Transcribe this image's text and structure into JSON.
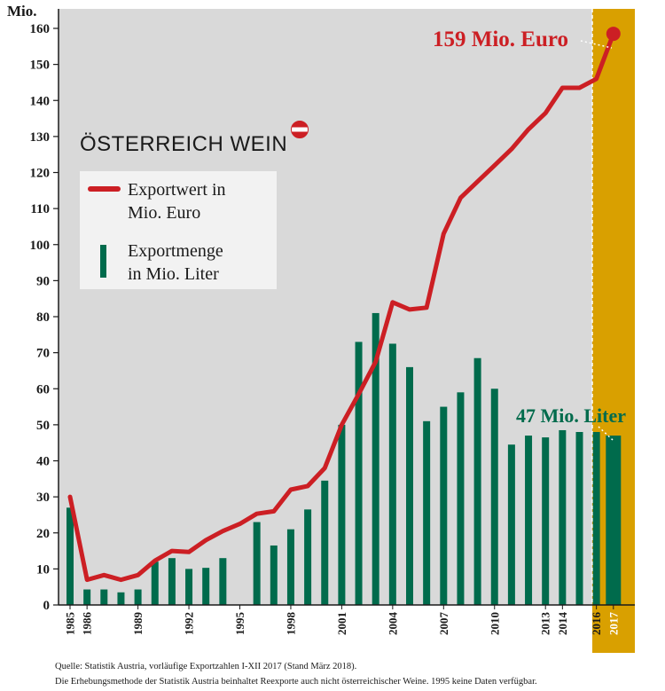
{
  "chart_data": {
    "type": "bar",
    "unit_label": "Mio.",
    "ylim": [
      0,
      160
    ],
    "yticks": [
      0,
      10,
      20,
      30,
      40,
      50,
      60,
      70,
      80,
      90,
      100,
      110,
      120,
      130,
      140,
      150,
      160
    ],
    "years": [
      1985,
      1986,
      1987,
      1988,
      1989,
      1990,
      1991,
      1992,
      1993,
      1994,
      1995,
      1996,
      1997,
      1998,
      1999,
      2000,
      2001,
      2002,
      2003,
      2004,
      2005,
      2006,
      2007,
      2008,
      2009,
      2010,
      2011,
      2012,
      2013,
      2014,
      2015,
      2016,
      2017
    ],
    "x_tick_labels": [
      "1985",
      "1986",
      "1989",
      "1992",
      "1995",
      "1998",
      "2001",
      "2004",
      "2007",
      "2010",
      "2013",
      "2014",
      "2016",
      "2017"
    ],
    "highlight_year": 2017,
    "series": [
      {
        "name": "Exportmenge in Mio. Liter",
        "type": "bar",
        "color": "#006b4c",
        "values": [
          27,
          4.3,
          4.3,
          3.5,
          4.3,
          12,
          13,
          10,
          10.3,
          13,
          null,
          23,
          16.5,
          21,
          26.5,
          34.5,
          50,
          73,
          81,
          72.5,
          66,
          51,
          55,
          59,
          68.5,
          60,
          44.5,
          47,
          46.5,
          48.5,
          48,
          48,
          47
        ]
      },
      {
        "name": "Exportwert in Mio. Euro",
        "type": "line",
        "color": "#cc1f24",
        "values": [
          30,
          7,
          8.3,
          7,
          8.3,
          12.3,
          15,
          14.7,
          18,
          20.5,
          22.5,
          25.3,
          26,
          32,
          33,
          38,
          50,
          58.5,
          67.5,
          84,
          82,
          82.5,
          103,
          113,
          117.5,
          122,
          126.5,
          132,
          136.5,
          143.5,
          143.5,
          146,
          158.5
        ]
      }
    ],
    "legend": {
      "line_label_1": "Exportwert in",
      "line_label_2": "Mio. Euro",
      "bar_label_1": "Exportmenge",
      "bar_label_2": "in Mio. Liter",
      "placement": "top-left"
    },
    "annotations": {
      "euro": "159 Mio. Euro",
      "liter": "47 Mio. Liter"
    },
    "colors": {
      "plot_background": "#d9d9d9",
      "highlight_band": "#d9a000",
      "bar": "#006b4c",
      "line": "#cc1f24"
    }
  },
  "logo": {
    "text": "ÖSTERREICH WEIN"
  },
  "footnotes": {
    "line1": "Quelle: Statistik Austria, vorläufige Exportzahlen I-XII 2017 (Stand März 2018).",
    "line2": "Die Erhebungsmethode der Statistik Austria beinhaltet Reexporte auch nicht österreichischer Weine. 1995 keine Daten verfügbar."
  }
}
